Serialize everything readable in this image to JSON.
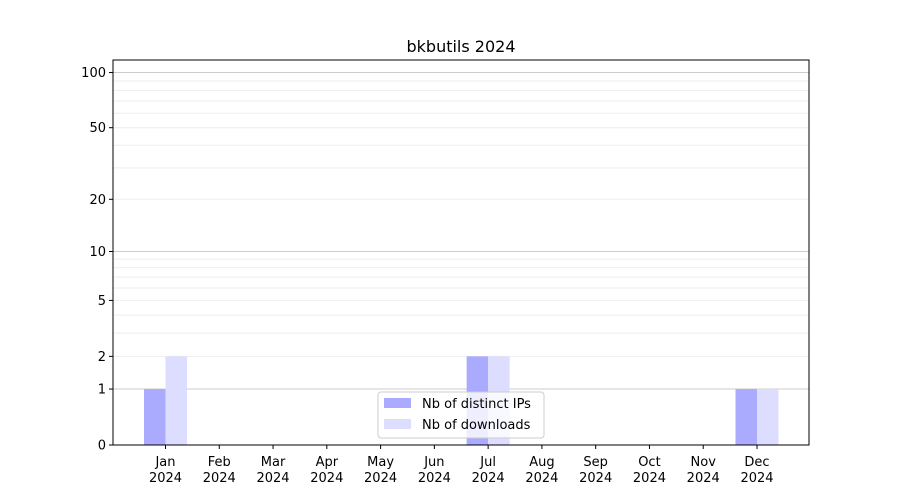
{
  "chart_data": {
    "type": "bar",
    "title": "bkbutils 2024",
    "xlabel": "",
    "ylabel": "",
    "yscale": "log(1+y)",
    "ylim": [
      0,
      117
    ],
    "yticks": [
      0,
      1,
      2,
      5,
      10,
      20,
      50,
      100
    ],
    "grid": true,
    "legend_placement": "bottom-center",
    "categories": [
      "Jan\n2024",
      "Feb\n2024",
      "Mar\n2024",
      "Apr\n2024",
      "May\n2024",
      "Jun\n2024",
      "Jul\n2024",
      "Aug\n2024",
      "Sep\n2024",
      "Oct\n2024",
      "Nov\n2024",
      "Dec\n2024"
    ],
    "series": [
      {
        "name": "Nb of distinct IPs",
        "color": "#aaaaff",
        "values": [
          1,
          0,
          0,
          0,
          0,
          0,
          2,
          0,
          0,
          0,
          0,
          1
        ]
      },
      {
        "name": "Nb of downloads",
        "color": "#ddddff",
        "values": [
          2,
          0,
          0,
          0,
          0,
          0,
          2,
          0,
          0,
          0,
          0,
          1
        ]
      }
    ]
  }
}
